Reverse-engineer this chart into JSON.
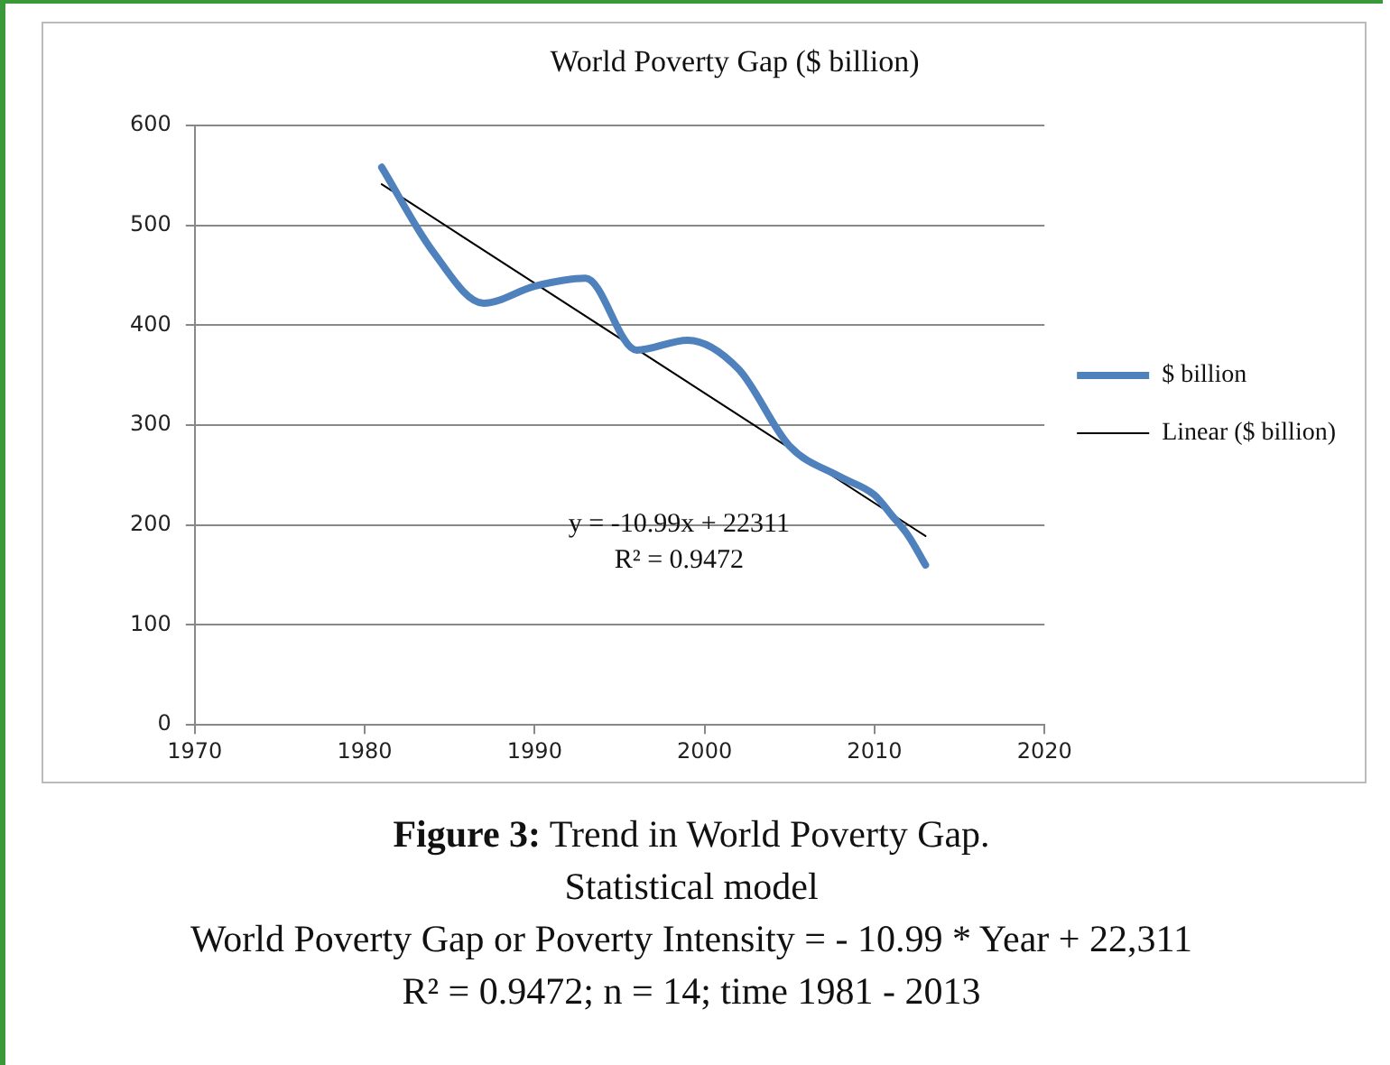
{
  "chart_data": {
    "type": "line",
    "title": "World Poverty Gap ($ billion)",
    "x": [
      1981,
      1984,
      1987,
      1990,
      1993,
      1996,
      1999,
      2002,
      2005,
      2008,
      2010,
      2011,
      2012,
      2013
    ],
    "series": [
      {
        "name": "$ billion",
        "color": "#4f81bd",
        "values": [
          558,
          474,
          422,
          439,
          447,
          375,
          385,
          356,
          279,
          248,
          230,
          210,
          189,
          160
        ]
      },
      {
        "name": "Linear ($ billion)",
        "type": "line",
        "color": "#000000",
        "x": [
          1981,
          2013
        ],
        "values": [
          541,
          189
        ]
      }
    ],
    "xlim": [
      1970,
      2020
    ],
    "xticks": [
      1970,
      1980,
      1990,
      2000,
      2010,
      2020
    ],
    "ylim": [
      0,
      600
    ],
    "yticks": [
      0,
      100,
      200,
      300,
      400,
      500,
      600
    ],
    "grid": "y",
    "legend": "right",
    "marker": "none",
    "annotations": [
      "y = -10.99x + 22311",
      "R² = 0.9472",
      "Figure 3: Trend in World Poverty Gap.",
      "Statistical model",
      "World Poverty Gap or Poverty Intensity = - 10.99 * Year + 22,311",
      "R² = 0.9472; n = 14; time 1981 - 2013"
    ]
  }
}
